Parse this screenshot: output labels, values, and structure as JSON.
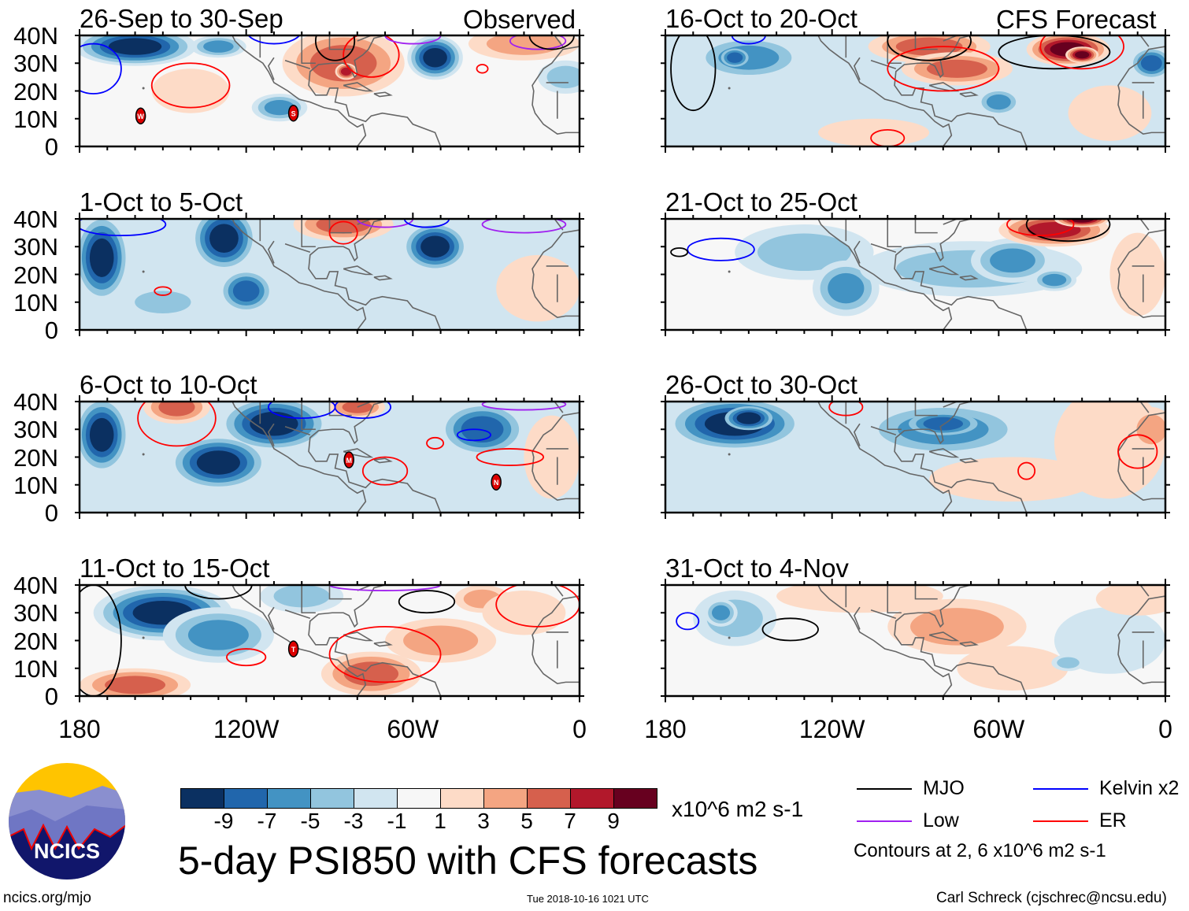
{
  "title": "5-day PSI850 with CFS forecasts",
  "units": "x10^6 m2 s-1",
  "site": "ncics.org/mjo",
  "logo_text": "NCICS",
  "timestamp": "Tue 2018-10-16 1021 UTC",
  "author": "Carl Schreck (cjschrec@ncsu.edu)",
  "contour_note": "Contours at 2, 6 x10^6 m2 s-1",
  "column_labels": {
    "left": "Observed",
    "right": "CFS Forecast"
  },
  "lat_labels": [
    "40N",
    "30N",
    "20N",
    "10N",
    "0"
  ],
  "lon_labels": [
    "180",
    "120W",
    "60W",
    "0"
  ],
  "colorbar": {
    "colors": [
      "#0b3061",
      "#2166ac",
      "#4393c3",
      "#92c5de",
      "#d1e5f0",
      "#f7f7f7",
      "#fddbc7",
      "#f4a582",
      "#d6604d",
      "#b2182b",
      "#67001f"
    ],
    "labels": [
      "-9",
      "-7",
      "-5",
      "-3",
      "-1",
      "1",
      "3",
      "5",
      "7",
      "9"
    ]
  },
  "legend": [
    {
      "label": "MJO",
      "color": "#000000"
    },
    {
      "label": "Kelvin x2",
      "color": "#0000ff"
    },
    {
      "label": "Low",
      "color": "#a020f0"
    },
    {
      "label": "ER",
      "color": "#ff0000"
    }
  ],
  "panels": [
    {
      "title": "26-Sep to 30-Sep",
      "col": 0,
      "row": 0,
      "base": -1,
      "blobs": [
        [
          160,
          36,
          22,
          7,
          -9
        ],
        [
          130,
          36,
          10,
          4,
          -5
        ],
        [
          52,
          32,
          10,
          8,
          -9
        ],
        [
          85,
          30,
          22,
          12,
          5
        ],
        [
          84,
          27,
          4,
          3,
          7
        ],
        [
          20,
          37,
          20,
          6,
          3
        ],
        [
          108,
          14,
          10,
          5,
          -5
        ],
        [
          140,
          20,
          14,
          8,
          1
        ],
        [
          5,
          25,
          10,
          6,
          -3
        ]
      ],
      "contours": [
        [
          140,
          22,
          14,
          8,
          "ER"
        ],
        [
          75,
          33,
          10,
          8,
          "ER"
        ],
        [
          175,
          28,
          10,
          9,
          "Kelvin x2"
        ],
        [
          110,
          42,
          10,
          5,
          "Kelvin x2"
        ],
        [
          88,
          38,
          7,
          7,
          "MJO"
        ],
        [
          60,
          40,
          10,
          3,
          "Low"
        ],
        [
          15,
          38,
          10,
          3,
          "Low"
        ],
        [
          10,
          40,
          8,
          5,
          "MJO"
        ],
        [
          35,
          28,
          2,
          1.5,
          "ER"
        ]
      ],
      "storms": [
        [
          158,
          11,
          "W"
        ],
        [
          103,
          12,
          "S"
        ]
      ]
    },
    {
      "title": "1-Oct to 5-Oct",
      "col": 0,
      "row": 1,
      "base": -3,
      "blobs": [
        [
          172,
          26,
          10,
          16,
          -9
        ],
        [
          128,
          33,
          12,
          12,
          -9
        ],
        [
          120,
          14,
          10,
          8,
          -7
        ],
        [
          52,
          30,
          12,
          9,
          -9
        ],
        [
          30,
          25,
          25,
          15,
          -1
        ],
        [
          85,
          38,
          18,
          6,
          5
        ],
        [
          150,
          10,
          15,
          6,
          -3
        ],
        [
          15,
          15,
          15,
          12,
          1
        ]
      ],
      "contours": [
        [
          165,
          38,
          16,
          4,
          "Kelvin x2"
        ],
        [
          85,
          35,
          5,
          4,
          "ER"
        ],
        [
          150,
          14,
          3,
          1.5,
          "ER"
        ],
        [
          70,
          40,
          10,
          3,
          "Low"
        ],
        [
          20,
          38,
          15,
          3,
          "Low"
        ],
        [
          55,
          40,
          8,
          3,
          "Kelvin x2"
        ]
      ],
      "storms": []
    },
    {
      "title": "6-Oct to 10-Oct",
      "col": 0,
      "row": 2,
      "base": -3,
      "blobs": [
        [
          172,
          28,
          10,
          14,
          -9
        ],
        [
          130,
          18,
          18,
          10,
          -9
        ],
        [
          110,
          32,
          20,
          10,
          -9
        ],
        [
          145,
          38,
          12,
          6,
          5
        ],
        [
          80,
          38,
          10,
          4,
          5
        ],
        [
          35,
          30,
          16,
          10,
          -7
        ],
        [
          60,
          12,
          20,
          10,
          -1
        ],
        [
          10,
          20,
          10,
          15,
          1
        ],
        [
          150,
          5,
          30,
          5,
          -1
        ]
      ],
      "contours": [
        [
          145,
          34,
          14,
          10,
          "ER"
        ],
        [
          100,
          38,
          12,
          4,
          "Kelvin x2"
        ],
        [
          78,
          38,
          10,
          4,
          "Kelvin x2"
        ],
        [
          70,
          15,
          8,
          5,
          "ER"
        ],
        [
          25,
          20,
          12,
          3,
          "ER"
        ],
        [
          52,
          25,
          3,
          2,
          "ER"
        ],
        [
          38,
          28,
          6,
          2,
          "Kelvin x2"
        ],
        [
          20,
          39,
          15,
          2,
          "Low"
        ]
      ],
      "storms": [
        [
          83,
          19,
          "M"
        ],
        [
          30,
          11,
          "N"
        ]
      ]
    },
    {
      "title": "11-Oct to 15-Oct",
      "col": 0,
      "row": 3,
      "base": -1,
      "blobs": [
        [
          150,
          30,
          25,
          10,
          -9
        ],
        [
          130,
          22,
          20,
          10,
          -5
        ],
        [
          160,
          4,
          20,
          6,
          5
        ],
        [
          75,
          8,
          18,
          8,
          5
        ],
        [
          50,
          20,
          20,
          8,
          3
        ],
        [
          35,
          35,
          10,
          5,
          3
        ],
        [
          20,
          30,
          15,
          8,
          1
        ],
        [
          100,
          36,
          15,
          6,
          -3
        ]
      ],
      "contours": [
        [
          130,
          40,
          12,
          5,
          "MJO"
        ],
        [
          55,
          34,
          10,
          4,
          "MJO"
        ],
        [
          175,
          20,
          10,
          20,
          "MJO"
        ],
        [
          120,
          14,
          7,
          3,
          "ER"
        ],
        [
          70,
          15,
          20,
          10,
          "ER"
        ],
        [
          15,
          33,
          15,
          8,
          "ER"
        ],
        [
          70,
          40,
          20,
          2,
          "Low"
        ]
      ],
      "storms": [
        [
          103,
          17,
          "T"
        ]
      ]
    },
    {
      "title": "16-Oct to 20-Oct",
      "col": 1,
      "row": 0,
      "base": -3,
      "blobs": [
        [
          150,
          32,
          20,
          8,
          -5
        ],
        [
          155,
          32,
          6,
          4,
          -7
        ],
        [
          85,
          36,
          22,
          6,
          5
        ],
        [
          75,
          28,
          20,
          6,
          5
        ],
        [
          35,
          35,
          15,
          6,
          9
        ],
        [
          30,
          33,
          6,
          3,
          9
        ],
        [
          110,
          12,
          30,
          10,
          -1
        ],
        [
          60,
          16,
          8,
          5,
          -5
        ],
        [
          5,
          30,
          8,
          6,
          -7
        ],
        [
          20,
          12,
          15,
          10,
          1
        ],
        [
          105,
          5,
          20,
          5,
          1
        ]
      ],
      "contours": [
        [
          170,
          28,
          8,
          15,
          "MJO"
        ],
        [
          85,
          38,
          15,
          7,
          "MJO"
        ],
        [
          40,
          34,
          20,
          6,
          "MJO"
        ],
        [
          80,
          28,
          20,
          8,
          "ER"
        ],
        [
          30,
          36,
          15,
          8,
          "ER"
        ],
        [
          100,
          3,
          6,
          3,
          "ER"
        ],
        [
          150,
          40,
          6,
          3,
          "Kelvin x2"
        ]
      ],
      "storms": []
    },
    {
      "title": "21-Oct to 25-Oct",
      "col": 1,
      "row": 1,
      "base": -1,
      "blobs": [
        [
          130,
          28,
          25,
          10,
          -3
        ],
        [
          115,
          15,
          12,
          10,
          -5
        ],
        [
          70,
          22,
          40,
          10,
          -3
        ],
        [
          55,
          25,
          15,
          8,
          -5
        ],
        [
          40,
          18,
          8,
          4,
          -5
        ],
        [
          40,
          36,
          20,
          6,
          7
        ],
        [
          30,
          40,
          10,
          3,
          9
        ],
        [
          10,
          20,
          10,
          15,
          1
        ]
      ],
      "contours": [
        [
          160,
          29,
          12,
          4,
          "Kelvin x2"
        ],
        [
          175,
          28,
          3,
          1.5,
          "MJO"
        ],
        [
          35,
          38,
          15,
          6,
          "MJO"
        ],
        [
          45,
          38,
          12,
          4,
          "ER"
        ]
      ],
      "storms": []
    },
    {
      "title": "26-Oct to 30-Oct",
      "col": 1,
      "row": 2,
      "base": -3,
      "blobs": [
        [
          155,
          32,
          25,
          10,
          -9
        ],
        [
          150,
          34,
          10,
          5,
          -9
        ],
        [
          80,
          30,
          30,
          10,
          -5
        ],
        [
          80,
          32,
          15,
          5,
          -7
        ],
        [
          100,
          10,
          50,
          5,
          -1
        ],
        [
          20,
          25,
          20,
          20,
          1
        ],
        [
          55,
          12,
          30,
          8,
          1
        ],
        [
          5,
          30,
          8,
          8,
          3
        ]
      ],
      "contours": [
        [
          115,
          38,
          6,
          3,
          "ER"
        ],
        [
          50,
          15,
          3,
          3,
          "ER"
        ],
        [
          10,
          22,
          7,
          6,
          "ER"
        ]
      ],
      "storms": []
    },
    {
      "title": "31-Oct to 4-Nov",
      "col": 1,
      "row": 3,
      "base": -1,
      "blobs": [
        [
          155,
          28,
          15,
          10,
          -3
        ],
        [
          160,
          30,
          6,
          5,
          -5
        ],
        [
          110,
          36,
          30,
          6,
          1
        ],
        [
          75,
          25,
          25,
          10,
          3
        ],
        [
          55,
          10,
          20,
          8,
          1
        ],
        [
          20,
          20,
          20,
          12,
          -1
        ],
        [
          35,
          12,
          6,
          3,
          -3
        ],
        [
          10,
          35,
          15,
          6,
          1
        ]
      ],
      "contours": [
        [
          172,
          27,
          4,
          3,
          "Kelvin x2"
        ],
        [
          135,
          24,
          10,
          4,
          "MJO"
        ]
      ],
      "storms": []
    }
  ]
}
